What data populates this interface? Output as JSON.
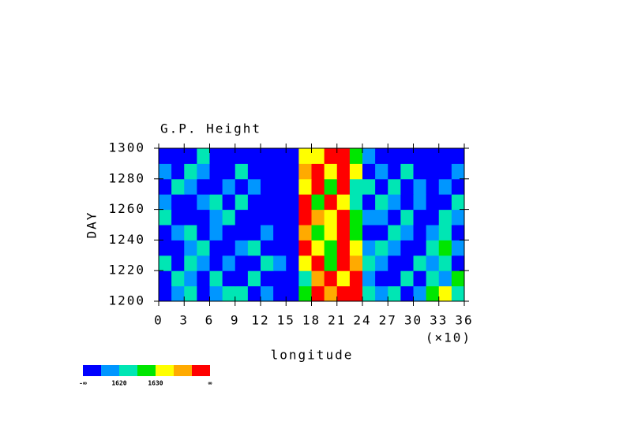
{
  "chart_data": {
    "type": "heatmap",
    "title": "G.P. Height",
    "xlabel": "longitude",
    "ylabel": "DAY",
    "x_multiplier": "(×10)",
    "xlim": [
      0,
      36
    ],
    "ylim": [
      1200,
      1300
    ],
    "xticks": [
      0,
      3,
      6,
      9,
      12,
      15,
      18,
      21,
      24,
      27,
      30,
      33,
      36
    ],
    "yticks": [
      1200,
      1220,
      1240,
      1260,
      1280,
      1300
    ],
    "x": [
      0.75,
      2.25,
      3.75,
      5.25,
      6.75,
      8.25,
      9.75,
      11.25,
      12.75,
      14.25,
      15.75,
      17.25,
      18.75,
      20.25,
      21.75,
      23.25,
      24.75,
      26.25,
      27.75,
      29.25,
      30.75,
      32.25,
      33.75,
      35.25
    ],
    "y": [
      1205,
      1215,
      1225,
      1235,
      1245,
      1255,
      1265,
      1275,
      1285,
      1295
    ],
    "z": [
      [
        1612,
        1618,
        1622,
        1610,
        1615,
        1624,
        1620,
        1612,
        1618,
        1610,
        1608,
        1626,
        1642,
        1636,
        1644,
        1641,
        1620,
        1616,
        1622,
        1612,
        1618,
        1625,
        1632,
        1620
      ],
      [
        1608,
        1622,
        1616,
        1612,
        1620,
        1610,
        1614,
        1622,
        1608,
        1614,
        1606,
        1622,
        1638,
        1644,
        1632,
        1643,
        1618,
        1612,
        1608,
        1620,
        1614,
        1622,
        1616,
        1628
      ],
      [
        1620,
        1612,
        1624,
        1616,
        1608,
        1618,
        1612,
        1610,
        1620,
        1616,
        1610,
        1634,
        1642,
        1628,
        1645,
        1637,
        1624,
        1618,
        1612,
        1610,
        1622,
        1616,
        1620,
        1612
      ],
      [
        1614,
        1608,
        1618,
        1622,
        1612,
        1606,
        1616,
        1620,
        1610,
        1604,
        1612,
        1640,
        1633,
        1626,
        1641,
        1630,
        1616,
        1622,
        1618,
        1614,
        1608,
        1620,
        1626,
        1618
      ],
      [
        1610,
        1616,
        1620,
        1612,
        1618,
        1614,
        1608,
        1614,
        1618,
        1610,
        1606,
        1638,
        1626,
        1632,
        1642,
        1628,
        1614,
        1610,
        1620,
        1616,
        1612,
        1618,
        1622,
        1614
      ],
      [
        1622,
        1614,
        1612,
        1608,
        1616,
        1620,
        1612,
        1606,
        1612,
        1604,
        1602,
        1643,
        1636,
        1630,
        1645,
        1626,
        1618,
        1616,
        1612,
        1622,
        1610,
        1614,
        1620,
        1616
      ],
      [
        1616,
        1610,
        1608,
        1618,
        1622,
        1612,
        1620,
        1610,
        1604,
        1608,
        1604,
        1644,
        1628,
        1640,
        1632,
        1622,
        1614,
        1620,
        1616,
        1610,
        1618,
        1612,
        1608,
        1622
      ],
      [
        1612,
        1620,
        1616,
        1610,
        1614,
        1618,
        1612,
        1616,
        1608,
        1606,
        1608,
        1633,
        1642,
        1626,
        1646,
        1624,
        1620,
        1612,
        1622,
        1614,
        1616,
        1610,
        1618,
        1612
      ],
      [
        1618,
        1612,
        1622,
        1616,
        1610,
        1614,
        1620,
        1608,
        1612,
        1604,
        1612,
        1636,
        1645,
        1632,
        1641,
        1630,
        1612,
        1618,
        1610,
        1620,
        1614,
        1608,
        1612,
        1616
      ],
      [
        1610,
        1608,
        1614,
        1620,
        1612,
        1606,
        1610,
        1614,
        1610,
        1602,
        1606,
        1630,
        1634,
        1644,
        1640,
        1626,
        1616,
        1610,
        1614,
        1612,
        1608,
        1604,
        1610,
        1614
      ]
    ],
    "levels": [
      1615,
      1620,
      1625,
      1630,
      1635,
      1640
    ],
    "colors": [
      "#0000ff",
      "#0096ff",
      "#00e6b4",
      "#00e600",
      "#ffff00",
      "#ffaa00",
      "#ff0000"
    ],
    "colorbar_ticks": [
      "-∞",
      1620,
      1630,
      "∞"
    ]
  }
}
